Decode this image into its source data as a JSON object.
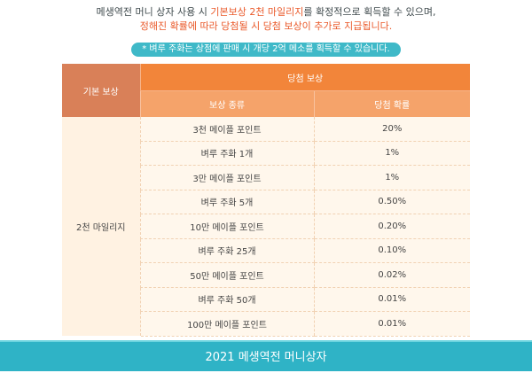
{
  "intro": {
    "line1_part1": "메생역전 머니 상자 사용 시 ",
    "line1_highlight": "기본보상 2천 마일리지",
    "line1_part2": "를 확정적으로 획득할 수 있으며,",
    "line2_highlight": "정해진 확률에 따라 당첨될 시 당첨 보상이 추가로 지급됩니다."
  },
  "notice": "* 벼루 주화는 상점에 판매 시 개당 2억 메소를 획득할 수 있습니다.",
  "table": {
    "header_base": "기본 보상",
    "header_prize": "당첨 보상",
    "subheader_type": "보상 종류",
    "subheader_prob": "당첨 확률",
    "base_reward": "2천 마일리지",
    "rows": [
      {
        "type": "3천 메이플 포인트",
        "prob": "20%"
      },
      {
        "type": "벼루 주화 1개",
        "prob": "1%"
      },
      {
        "type": "3만 메이플 포인트",
        "prob": "1%"
      },
      {
        "type": "벼루 주화 5개",
        "prob": "0.50%"
      },
      {
        "type": "10만 메이플 포인트",
        "prob": "0.20%"
      },
      {
        "type": "벼루 주화 25개",
        "prob": "0.10%"
      },
      {
        "type": "50만 메이플 포인트",
        "prob": "0.02%"
      },
      {
        "type": "벼루 주화 50개",
        "prob": "0.01%"
      },
      {
        "type": "100만 메이플 포인트",
        "prob": "0.01%"
      }
    ]
  },
  "footer": "2021 메생역전 머니상자",
  "colors": {
    "accent_teal": "#2fb3c6",
    "accent_orange": "#f2853a",
    "highlight_text": "#ea5a2b"
  }
}
